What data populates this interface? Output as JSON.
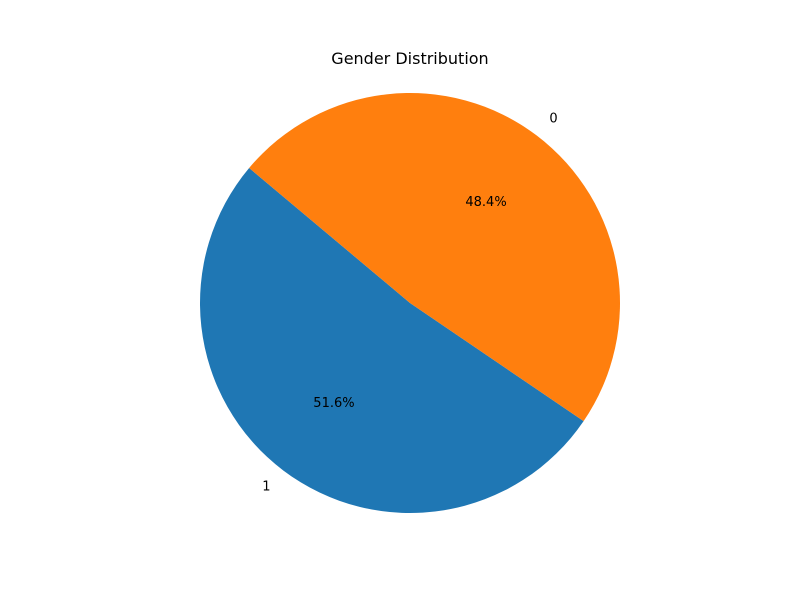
{
  "chart_data": {
    "type": "pie",
    "title": "Gender Distribution",
    "start_angle_deg": 140,
    "direction": "counterclockwise",
    "slices": [
      {
        "label": "1",
        "value": 51.6,
        "pct_label": "51.6%",
        "color": "#1f77b4"
      },
      {
        "label": "0",
        "value": 48.4,
        "pct_label": "48.4%",
        "color": "#ff7f0e"
      }
    ]
  }
}
